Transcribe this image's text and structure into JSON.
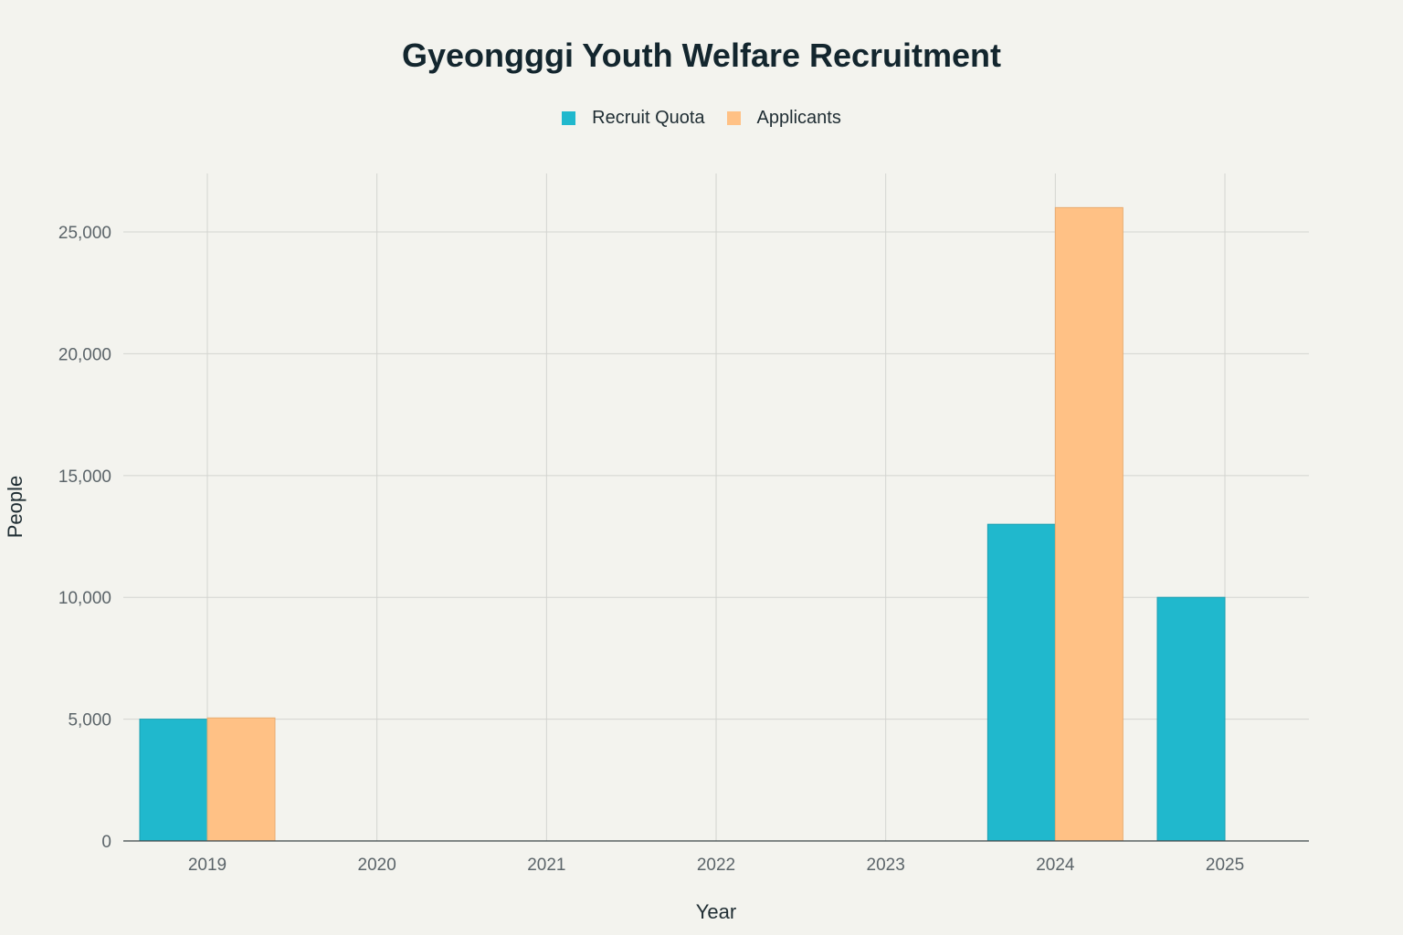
{
  "chart_data": {
    "type": "bar",
    "title": "Gyeongggi Youth Welfare Recruitment",
    "xlabel": "Year",
    "ylabel": "People",
    "categories": [
      "2019",
      "2020",
      "2021",
      "2022",
      "2023",
      "2024",
      "2025"
    ],
    "series": [
      {
        "name": "Recruit Quota",
        "color": "#20b8cd",
        "values": [
          5000,
          0,
          0,
          0,
          0,
          13000,
          10000
        ]
      },
      {
        "name": "Applicants",
        "color": "#ffc185",
        "values": [
          5050,
          0,
          0,
          0,
          0,
          26000,
          0
        ]
      }
    ],
    "ylim": [
      0,
      27400
    ],
    "yticks": [
      0,
      5000,
      10000,
      15000,
      20000,
      25000
    ],
    "ytick_labels": [
      "0",
      "5,000",
      "10,000",
      "15,000",
      "20,000",
      "25,000"
    ],
    "grid": true,
    "legend_position": "top-center"
  }
}
